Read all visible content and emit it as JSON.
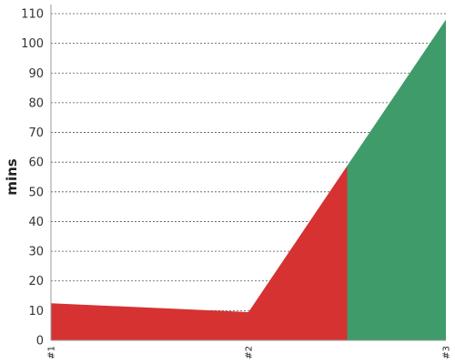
{
  "chart_data": {
    "type": "area",
    "categories": [
      "#1",
      "#2",
      "#3"
    ],
    "x": [
      1,
      2,
      3
    ],
    "series": [
      {
        "values": [
          12.5,
          9.5,
          108
        ],
        "color_below": "#d63232",
        "color_above": "#3f9c6a"
      }
    ],
    "threshold": {
      "type": "color change",
      "x": 2.5,
      "note": "red fill to the left, green fill to the right"
    },
    "title": "",
    "xlabel": "",
    "ylabel": "mins",
    "ylim": [
      0,
      110
    ],
    "yticks": [
      0,
      10,
      20,
      30,
      40,
      50,
      60,
      70,
      80,
      90,
      100,
      110
    ],
    "grid": "horizontal dashed",
    "legend": "none"
  }
}
